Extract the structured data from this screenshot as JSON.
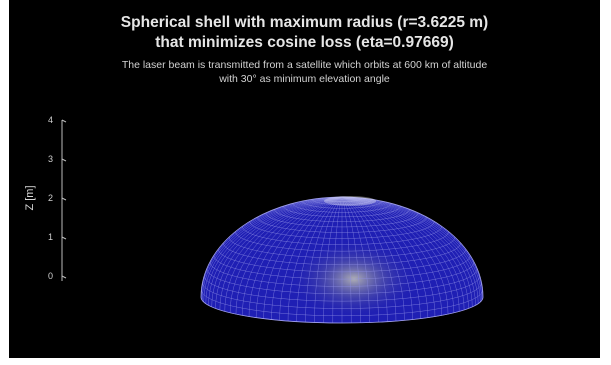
{
  "chart_data": {
    "type": "surface",
    "title": [
      "Spherical shell with maximum radius (r=3.6225 m)",
      "that minimizes cosine loss (eta=0.97669)"
    ],
    "subtitle": [
      "The laser beam is transmitted from a satellite which orbits at 600 km of altitude",
      "with 30° as minimum elevation angle"
    ],
    "zlabel": "Z [m]",
    "z_ticks": [
      0,
      1,
      2,
      3,
      4
    ],
    "z_tick_labels": [
      "0",
      "1",
      "2",
      "3",
      "4"
    ],
    "zlim": [
      0,
      4
    ],
    "radius": 3.6225,
    "eta": 0.97669,
    "shell_height": 1.8113,
    "background": "#000000",
    "surface_color": "#1f1fb4",
    "mesh_color": "#8f8fe6"
  }
}
